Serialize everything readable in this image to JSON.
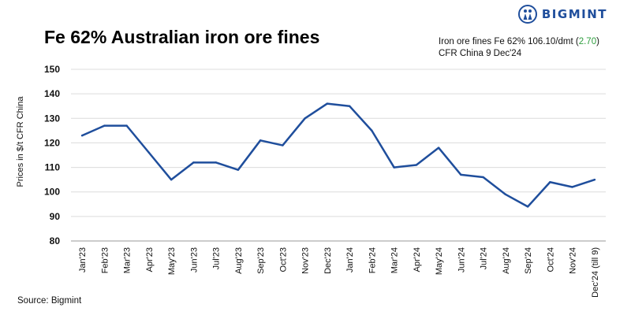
{
  "brand": {
    "name": "BIGMINT",
    "logo_icon": "people-logo-icon",
    "color": "#1f4e9c"
  },
  "source": "Source: Bigmint",
  "annotation": {
    "line1_prefix": "Iron ore fines Fe 62% 106.10/dmt (",
    "line1_change": "2.70",
    "line1_suffix": ")",
    "line2": "CFR China 9 Dec'24",
    "change_color": "#2e9e3e"
  },
  "chart_data": {
    "type": "line",
    "title": "Fe 62% Australian iron ore fines",
    "ylabel": "Prices in $/t CFR China",
    "xlabel": "",
    "ylim": [
      80,
      150
    ],
    "yticks": [
      80,
      90,
      100,
      110,
      120,
      130,
      140,
      150
    ],
    "grid": true,
    "categories": [
      "Jan'23",
      "Feb'23",
      "Mar'23",
      "Apr'23",
      "May'23",
      "Jun'23",
      "Jul'23",
      "Aug'23",
      "Sep'23",
      "Oct'23",
      "Nov'23",
      "Dec'23",
      "Jan'24",
      "Feb'24",
      "Mar'24",
      "Apr'24",
      "May'24",
      "Jun'24",
      "Jul'24",
      "Aug'24",
      "Sep'24",
      "Oct'24",
      "Nov'24",
      "Dec'24 (till 9)"
    ],
    "series": [
      {
        "color": "#1f4e9c",
        "values": [
          123,
          127,
          127,
          116,
          105,
          112,
          112,
          109,
          121,
          119,
          130,
          136,
          135,
          125,
          110,
          111,
          118,
          107,
          106,
          99,
          94,
          104,
          102,
          105
        ]
      }
    ]
  }
}
